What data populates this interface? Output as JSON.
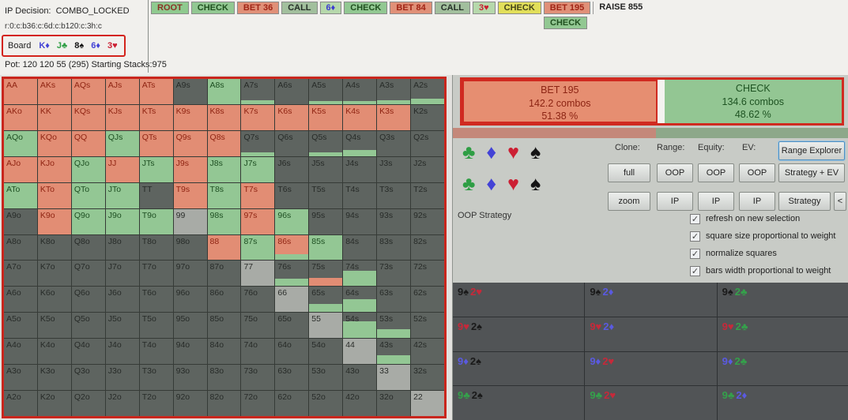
{
  "colors": {
    "bet": "#e28d74",
    "bet_text": "#8f2412",
    "check": "#93c794",
    "check_text": "#1e4f22",
    "off": "#5e6460",
    "pair": "#a8aba6",
    "red_border": "#d02a20",
    "active_yellow": "#e2df5a",
    "panel_bg": "#c8cbc6",
    "dark_panel": "#515456",
    "suit_club": "#2e9e44",
    "suit_diamond": "#4343d6",
    "suit_heart": "#cc1f33",
    "suit_spade": "#141414",
    "combo_club": "#35a04b",
    "combo_diamond": "#5a5ae0",
    "combo_heart": "#c6293a",
    "combo_spade": "#1a1a1a"
  },
  "header": {
    "ip_decision": "IP Decision:  COMBO_LOCKED",
    "node_line": "r:0:c:b36:c:6d:c:b120:c:3h:c",
    "board_label": "Board",
    "board_cards": [
      {
        "rank": "K",
        "suit": "♦",
        "suit_name": "diamond"
      },
      {
        "rank": "J",
        "suit": "♣",
        "suit_name": "club"
      },
      {
        "rank": "8",
        "suit": "♠",
        "suit_name": "spade"
      },
      {
        "rank": "6",
        "suit": "♦",
        "suit_name": "diamond"
      },
      {
        "rank": "3",
        "suit": "♥",
        "suit_name": "heart"
      }
    ],
    "pot_line": "Pot: 120 120 55 (295) Starting Stacks:975"
  },
  "action_bar": {
    "nodes": [
      {
        "label": "ROOT",
        "style": "root"
      },
      {
        "label": "CHECK",
        "style": "check"
      },
      {
        "label": "BET 36",
        "style": "bet"
      },
      {
        "label": "CALL",
        "style": "call"
      },
      {
        "label": "6♦",
        "style": "card-diamond"
      },
      {
        "label": "CHECK",
        "style": "check"
      },
      {
        "label": "BET 84",
        "style": "bet"
      },
      {
        "label": "CALL",
        "style": "call"
      },
      {
        "label": "3♥",
        "style": "card-heart"
      },
      {
        "label": "CHECK",
        "style": "check-active"
      },
      {
        "label": "BET 195",
        "style": "bet"
      },
      {
        "label": "RAISE 855",
        "style": "plain"
      }
    ],
    "sub_node": {
      "label": "CHECK",
      "style": "check",
      "under_label": "BET 195"
    }
  },
  "summary": {
    "bet": {
      "label": "BET 195",
      "combos": "142.2 combos",
      "pct": "51.38 %",
      "fraction": 51.38
    },
    "check": {
      "label": "CHECK",
      "combos": "134.6 combos",
      "pct": "48.62 %",
      "fraction": 48.62
    }
  },
  "controls": {
    "suit_rows": [
      [
        "♣",
        "♦",
        "♥",
        "♠"
      ],
      [
        "♣",
        "♦",
        "♥",
        "♠"
      ]
    ],
    "column_labels": [
      "Clone:",
      "Range:",
      "Equity:",
      "EV:"
    ],
    "column_keys": [
      "clone",
      "range",
      "equity",
      "ev"
    ],
    "buttons_row1": [
      "full",
      "OOP",
      "OOP",
      "OOP"
    ],
    "buttons_row2": [
      "zoom",
      "IP",
      "IP",
      "IP"
    ],
    "side_buttons": [
      "Range Explorer",
      "Strategy + EV",
      "Strategy",
      "<"
    ],
    "oop_strategy_label": "OOP Strategy",
    "checkboxes": [
      {
        "label": "refresh on new selection",
        "checked": true
      },
      {
        "label": "square size proportional to weight",
        "checked": true
      },
      {
        "label": "normalize squares",
        "checked": true
      },
      {
        "label": "bars width proportional to weight",
        "checked": true
      }
    ]
  },
  "hand_grid": {
    "rows": [
      [
        [
          "AA",
          "bet"
        ],
        [
          "AKs",
          "bet"
        ],
        [
          "AQs",
          "bet"
        ],
        [
          "AJs",
          "bet"
        ],
        [
          "ATs",
          "bet"
        ],
        [
          "A9s",
          "off"
        ],
        [
          "A8s",
          "check"
        ],
        [
          "A7s",
          "off",
          "check",
          14
        ],
        [
          "A6s",
          "off"
        ],
        [
          "A5s",
          "off",
          "check",
          12
        ],
        [
          "A4s",
          "off",
          "check",
          12
        ],
        [
          "A3s",
          "off",
          "check",
          14
        ],
        [
          "A2s",
          "off",
          "check",
          22
        ]
      ],
      [
        [
          "AKo",
          "bet"
        ],
        [
          "KK",
          "bet"
        ],
        [
          "KQs",
          "bet"
        ],
        [
          "KJs",
          "bet"
        ],
        [
          "KTs",
          "bet"
        ],
        [
          "K9s",
          "bet"
        ],
        [
          "K8s",
          "bet"
        ],
        [
          "K7s",
          "bet"
        ],
        [
          "K6s",
          "bet"
        ],
        [
          "K5s",
          "bet"
        ],
        [
          "K4s",
          "bet"
        ],
        [
          "K3s",
          "bet"
        ],
        [
          "K2s",
          "off"
        ]
      ],
      [
        [
          "AQo",
          "check"
        ],
        [
          "KQo",
          "bet"
        ],
        [
          "QQ",
          "bet"
        ],
        [
          "QJs",
          "check"
        ],
        [
          "QTs",
          "bet"
        ],
        [
          "Q9s",
          "bet"
        ],
        [
          "Q8s",
          "bet"
        ],
        [
          "Q7s",
          "off",
          "check",
          14
        ],
        [
          "Q6s",
          "off"
        ],
        [
          "Q5s",
          "off",
          "check",
          14
        ],
        [
          "Q4s",
          "off",
          "check",
          25
        ],
        [
          "Q3s",
          "off"
        ],
        [
          "Q2s",
          "off"
        ]
      ],
      [
        [
          "AJo",
          "bet"
        ],
        [
          "KJo",
          "bet"
        ],
        [
          "QJo",
          "check"
        ],
        [
          "JJ",
          "bet"
        ],
        [
          "JTs",
          "check"
        ],
        [
          "J9s",
          "bet"
        ],
        [
          "J8s",
          "check"
        ],
        [
          "J7s",
          "check"
        ],
        [
          "J6s",
          "off"
        ],
        [
          "J5s",
          "off"
        ],
        [
          "J4s",
          "off"
        ],
        [
          "J3s",
          "off"
        ],
        [
          "J2s",
          "off"
        ]
      ],
      [
        [
          "ATo",
          "check"
        ],
        [
          "KTo",
          "bet"
        ],
        [
          "QTo",
          "check"
        ],
        [
          "JTo",
          "check"
        ],
        [
          "TT",
          "off"
        ],
        [
          "T9s",
          "bet"
        ],
        [
          "T8s",
          "check"
        ],
        [
          "T7s",
          "bet"
        ],
        [
          "T6s",
          "off"
        ],
        [
          "T5s",
          "off"
        ],
        [
          "T4s",
          "off"
        ],
        [
          "T3s",
          "off"
        ],
        [
          "T2s",
          "off"
        ]
      ],
      [
        [
          "A9o",
          "off"
        ],
        [
          "K9o",
          "bet"
        ],
        [
          "Q9o",
          "check"
        ],
        [
          "J9o",
          "check"
        ],
        [
          "T9o",
          "check"
        ],
        [
          "99",
          "pair"
        ],
        [
          "98s",
          "check"
        ],
        [
          "97s",
          "bet"
        ],
        [
          "96s",
          "check"
        ],
        [
          "95s",
          "off"
        ],
        [
          "94s",
          "off"
        ],
        [
          "93s",
          "off"
        ],
        [
          "92s",
          "off"
        ]
      ],
      [
        [
          "A8o",
          "off"
        ],
        [
          "K8o",
          "off"
        ],
        [
          "Q8o",
          "off"
        ],
        [
          "J8o",
          "off"
        ],
        [
          "T8o",
          "off"
        ],
        [
          "98o",
          "off"
        ],
        [
          "88",
          "bet"
        ],
        [
          "87s",
          "check"
        ],
        [
          "86s",
          "bet",
          "check",
          22
        ],
        [
          "85s",
          "check"
        ],
        [
          "84s",
          "off"
        ],
        [
          "83s",
          "off"
        ],
        [
          "82s",
          "off"
        ]
      ],
      [
        [
          "A7o",
          "off"
        ],
        [
          "K7o",
          "off"
        ],
        [
          "Q7o",
          "off"
        ],
        [
          "J7o",
          "off"
        ],
        [
          "T7o",
          "off"
        ],
        [
          "97o",
          "off"
        ],
        [
          "87o",
          "off"
        ],
        [
          "77",
          "pair"
        ],
        [
          "76s",
          "off",
          "check",
          30
        ],
        [
          "75s",
          "off",
          "bet",
          32
        ],
        [
          "74s",
          "off",
          "check",
          60
        ],
        [
          "73s",
          "off"
        ],
        [
          "72s",
          "off"
        ]
      ],
      [
        [
          "A6o",
          "off"
        ],
        [
          "K6o",
          "off"
        ],
        [
          "Q6o",
          "off"
        ],
        [
          "J6o",
          "off"
        ],
        [
          "T6o",
          "off"
        ],
        [
          "96o",
          "off"
        ],
        [
          "86o",
          "off"
        ],
        [
          "76o",
          "off"
        ],
        [
          "66",
          "pair"
        ],
        [
          "65s",
          "off",
          "check",
          32
        ],
        [
          "64s",
          "off",
          "check",
          50
        ],
        [
          "63s",
          "off"
        ],
        [
          "62s",
          "off"
        ]
      ],
      [
        [
          "A5o",
          "off"
        ],
        [
          "K5o",
          "off"
        ],
        [
          "Q5o",
          "off"
        ],
        [
          "J5o",
          "off"
        ],
        [
          "T5o",
          "off"
        ],
        [
          "95o",
          "off"
        ],
        [
          "85o",
          "off"
        ],
        [
          "75o",
          "off"
        ],
        [
          "65o",
          "off"
        ],
        [
          "55",
          "pair"
        ],
        [
          "54s",
          "off",
          "check",
          68
        ],
        [
          "53s",
          "off",
          "check",
          35
        ],
        [
          "52s",
          "off"
        ]
      ],
      [
        [
          "A4o",
          "off"
        ],
        [
          "K4o",
          "off"
        ],
        [
          "Q4o",
          "off"
        ],
        [
          "J4o",
          "off"
        ],
        [
          "T4o",
          "off"
        ],
        [
          "94o",
          "off"
        ],
        [
          "84o",
          "off"
        ],
        [
          "74o",
          "off"
        ],
        [
          "64o",
          "off"
        ],
        [
          "54o",
          "off"
        ],
        [
          "44",
          "pair"
        ],
        [
          "43s",
          "off",
          "check",
          35
        ],
        [
          "42s",
          "off"
        ]
      ],
      [
        [
          "A3o",
          "off"
        ],
        [
          "K3o",
          "off"
        ],
        [
          "Q3o",
          "off"
        ],
        [
          "J3o",
          "off"
        ],
        [
          "T3o",
          "off"
        ],
        [
          "93o",
          "off"
        ],
        [
          "83o",
          "off"
        ],
        [
          "73o",
          "off"
        ],
        [
          "63o",
          "off"
        ],
        [
          "53o",
          "off"
        ],
        [
          "43o",
          "off"
        ],
        [
          "33",
          "pair"
        ],
        [
          "32s",
          "off"
        ]
      ],
      [
        [
          "A2o",
          "off"
        ],
        [
          "K2o",
          "off"
        ],
        [
          "Q2o",
          "off"
        ],
        [
          "J2o",
          "off"
        ],
        [
          "T2o",
          "off"
        ],
        [
          "92o",
          "off"
        ],
        [
          "82o",
          "off"
        ],
        [
          "72o",
          "off"
        ],
        [
          "62o",
          "off"
        ],
        [
          "52o",
          "off"
        ],
        [
          "42o",
          "off"
        ],
        [
          "32o",
          "off"
        ],
        [
          "22",
          "pair"
        ]
      ]
    ]
  },
  "combo_grid": {
    "rows": [
      [
        "9s2h",
        "9s2d",
        "9s2c"
      ],
      [
        "9h2s",
        "9h2d",
        "9h2c"
      ],
      [
        "9d2s",
        "9d2h",
        "9d2c"
      ],
      [
        "9c2s",
        "9c2h",
        "9c2d"
      ]
    ]
  }
}
